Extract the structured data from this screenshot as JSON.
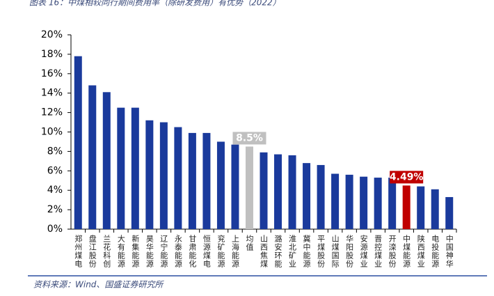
{
  "chart_data": {
    "type": "bar",
    "title": "图表 16：中煤相较同行期间费用率（除研发费用）有优势（2022）",
    "source": "资料来源：Wind、国盛证券研究所",
    "categories": [
      "郑州煤电",
      "盘江股份",
      "兰花科创",
      "大有能源",
      "新集能源",
      "昊华能源",
      "辽宁能源",
      "永泰能源",
      "甘肃能化",
      "恒源煤电",
      "兖矿能源",
      "上海能源",
      "均值",
      "山西焦煤",
      "潞安环能",
      "淮北矿业",
      "冀中能源",
      "平煤股份",
      "山煤国际",
      "华阳股份",
      "安源煤业",
      "晋控煤业",
      "开滦股份",
      "中煤能源",
      "陕西煤业",
      "电投能源",
      "中国神华"
    ],
    "values": [
      17.8,
      14.8,
      14.1,
      12.5,
      12.5,
      11.2,
      11.0,
      10.5,
      9.9,
      9.9,
      9.0,
      8.7,
      8.5,
      7.9,
      7.7,
      7.6,
      6.8,
      6.6,
      5.7,
      5.6,
      5.4,
      5.3,
      5.3,
      4.49,
      4.4,
      4.1,
      3.3
    ],
    "value_labels": [
      null,
      null,
      null,
      null,
      null,
      null,
      null,
      null,
      null,
      null,
      null,
      null,
      "8.5%",
      null,
      null,
      null,
      null,
      null,
      null,
      null,
      null,
      null,
      null,
      "4.49%",
      null,
      null,
      null
    ],
    "colors": [
      "#1a3a9c",
      "#1a3a9c",
      "#1a3a9c",
      "#1a3a9c",
      "#1a3a9c",
      "#1a3a9c",
      "#1a3a9c",
      "#1a3a9c",
      "#1a3a9c",
      "#1a3a9c",
      "#1a3a9c",
      "#1a3a9c",
      "#c0c0c0",
      "#1a3a9c",
      "#1a3a9c",
      "#1a3a9c",
      "#1a3a9c",
      "#1a3a9c",
      "#1a3a9c",
      "#1a3a9c",
      "#1a3a9c",
      "#1a3a9c",
      "#1a3a9c",
      "#c00000",
      "#1a3a9c",
      "#1a3a9c",
      "#1a3a9c"
    ],
    "ylim": [
      0,
      20
    ],
    "yticks": [
      {
        "value": 0,
        "label": "0%"
      },
      {
        "value": 2,
        "label": "2%"
      },
      {
        "value": 4,
        "label": "4%"
      },
      {
        "value": 6,
        "label": "6%"
      },
      {
        "value": 8,
        "label": "8%"
      },
      {
        "value": 10,
        "label": "10%"
      },
      {
        "value": 12,
        "label": "12%"
      },
      {
        "value": 14,
        "label": "14%"
      },
      {
        "value": 16,
        "label": "16%"
      },
      {
        "value": 18,
        "label": "18%"
      },
      {
        "value": 20,
        "label": "20%"
      }
    ]
  }
}
